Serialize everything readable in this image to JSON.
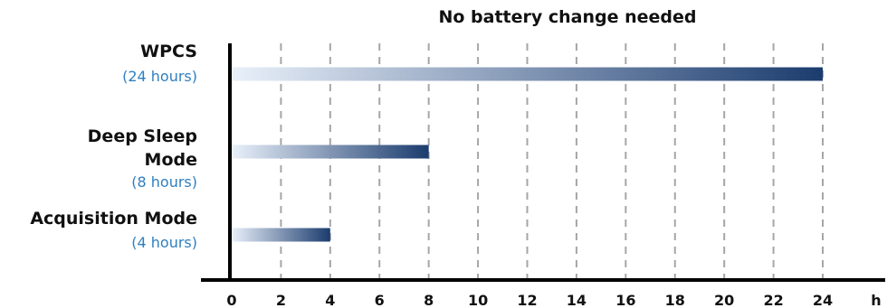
{
  "chart_data": {
    "type": "bar",
    "orientation": "horizontal",
    "title": "No battery change needed",
    "categories": [
      {
        "label_lines": [
          "WPCS"
        ],
        "sublabel": "(24 hours)"
      },
      {
        "label_lines": [
          "Deep Sleep",
          "Mode"
        ],
        "sublabel": "(8 hours)"
      },
      {
        "label_lines": [
          "Acquisition Mode"
        ],
        "sublabel": "(4 hours)"
      }
    ],
    "values": [
      24,
      8,
      4
    ],
    "x_ticks": [
      "0",
      "2",
      "4",
      "6",
      "8",
      "10",
      "12",
      "14",
      "16",
      "18",
      "20",
      "22",
      "24"
    ],
    "x_unit": "h",
    "xlim": [
      0,
      24
    ],
    "grid": true,
    "colors": {
      "bar_start": "#e9f0fa",
      "bar_end": "#1b3c6e"
    }
  }
}
